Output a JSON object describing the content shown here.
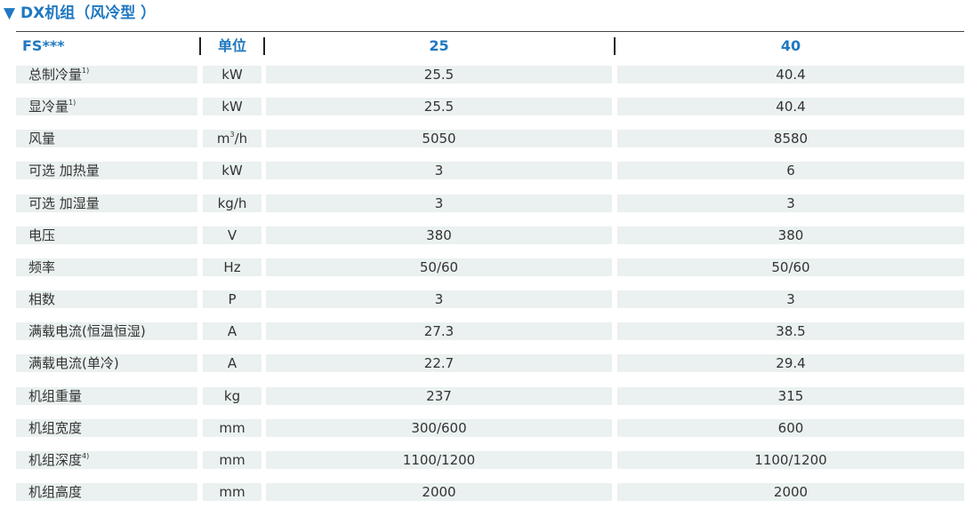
{
  "header": {
    "title": "▼ DX机组（风冷型 ）"
  },
  "table": {
    "header": [
      "FS***",
      "单位",
      "25",
      "40"
    ],
    "rows": [
      [
        {
          "text": "总制冷量",
          "sup": "1)"
        },
        "kW",
        "25.5",
        "40.4"
      ],
      [
        {
          "text": "显冷量",
          "sup": "1)"
        },
        "kW",
        "25.5",
        "40.4"
      ],
      [
        "风量",
        {
          "text": "m",
          "sup": "3",
          "after": "/h"
        },
        "5050",
        "8580"
      ],
      [
        "可选 加热量",
        "kW",
        "3",
        "6"
      ],
      [
        "可选 加湿量",
        "kg/h",
        "3",
        "3"
      ],
      [
        "电压",
        "V",
        "380",
        "380"
      ],
      [
        "频率",
        "Hz",
        "50/60",
        "50/60"
      ],
      [
        "相数",
        "P",
        "3",
        "3"
      ],
      [
        "满载电流(恒温恒湿)",
        "A",
        "27.3",
        "38.5"
      ],
      [
        "满载电流(单冷)",
        "A",
        "22.7",
        "29.4"
      ],
      [
        "机组重量",
        "kg",
        "237",
        "315"
      ],
      [
        "机组宽度",
        "mm",
        "300/600",
        "600"
      ],
      [
        {
          "text": "机组深度",
          "sup": "4)"
        },
        "mm",
        "1100/1200",
        "1100/1200"
      ],
      [
        "机组高度",
        "mm",
        "2000",
        "2000"
      ]
    ]
  }
}
